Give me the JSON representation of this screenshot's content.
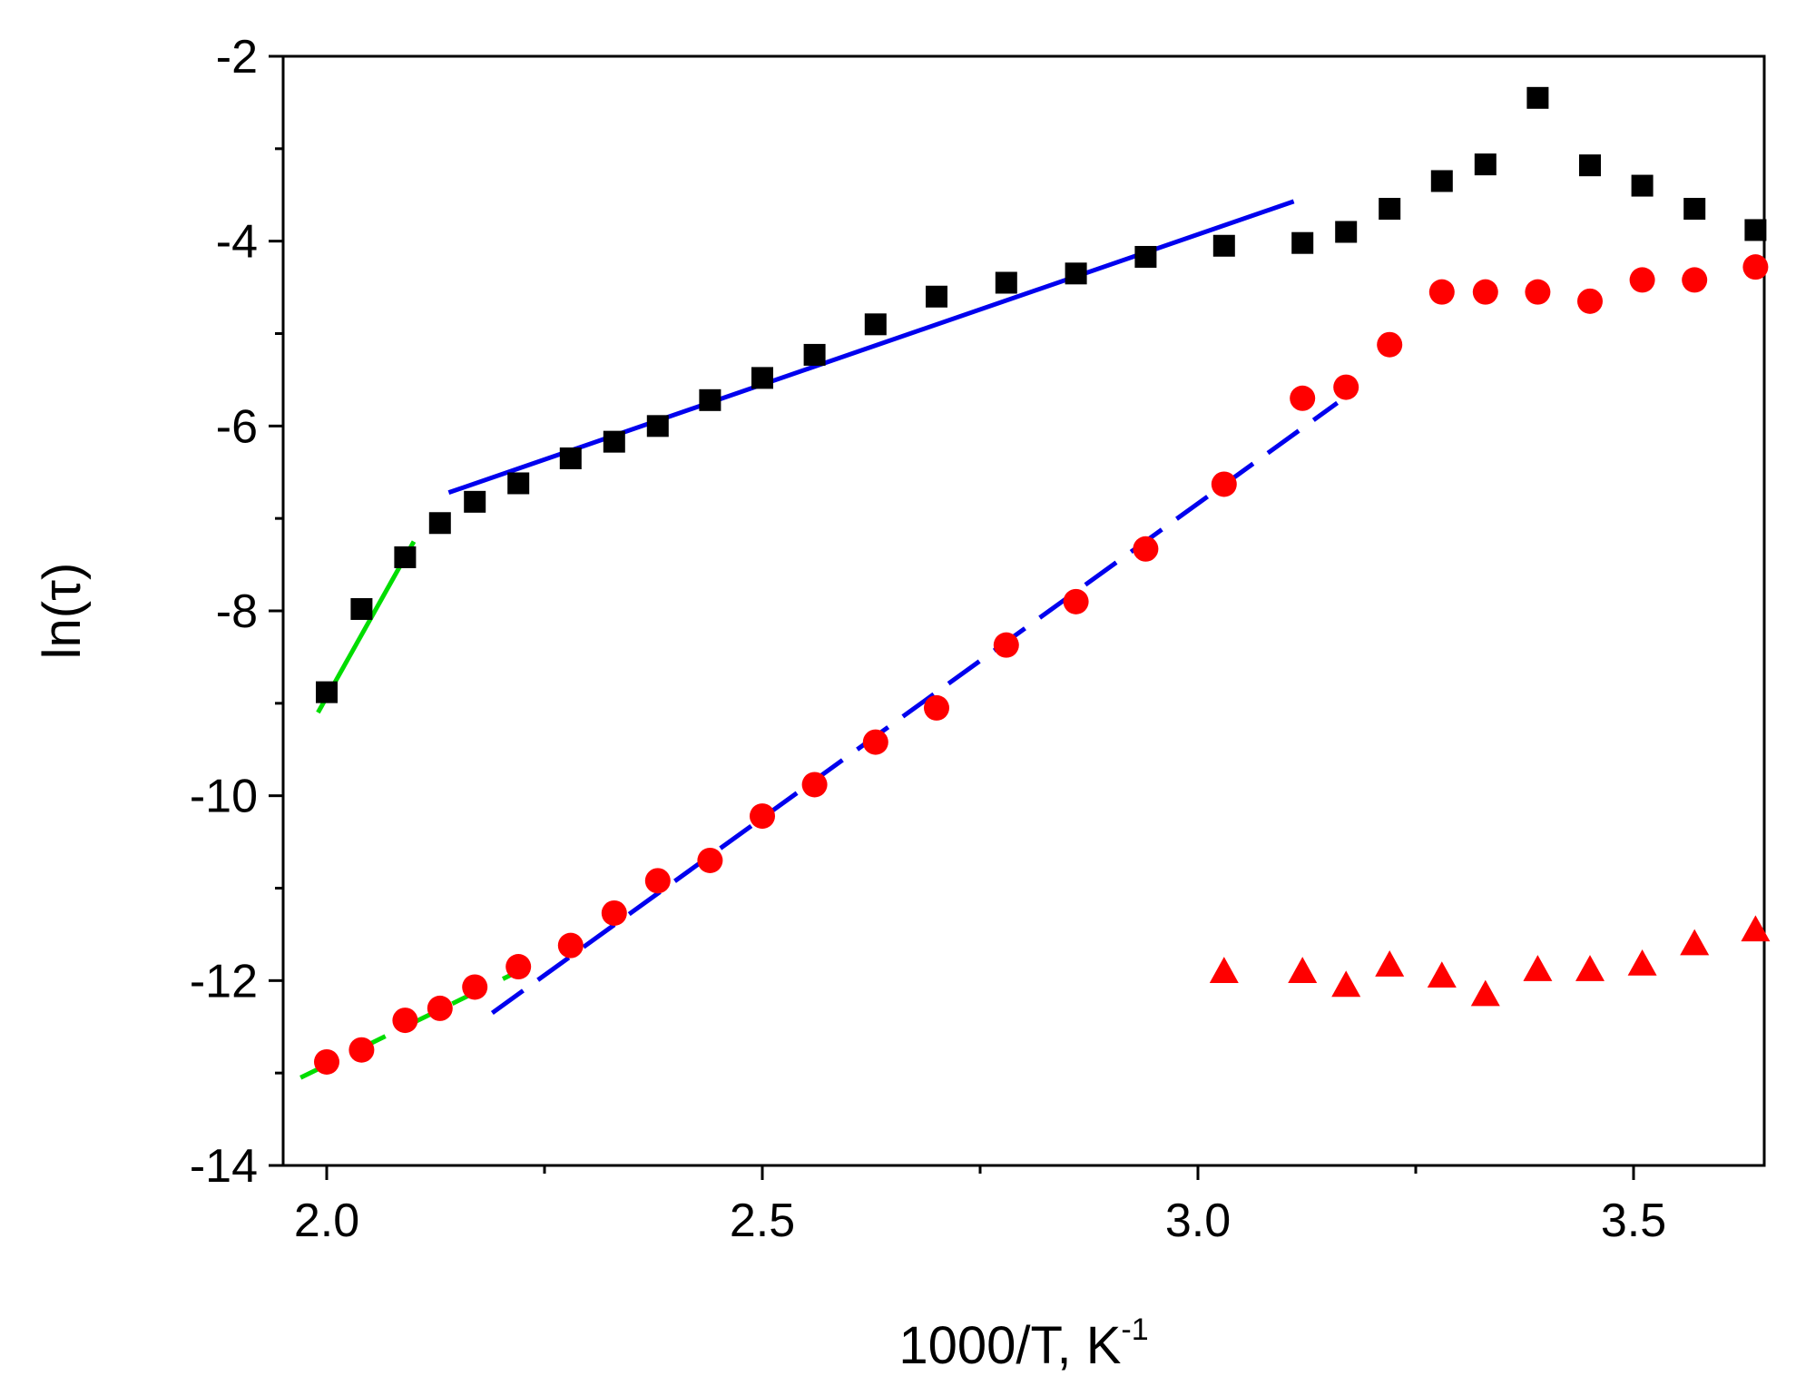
{
  "chart_data": {
    "type": "scatter",
    "title": "",
    "xlabel": {
      "main": "1000/T, K",
      "sup": "-1"
    },
    "ylabel": "ln(τ)",
    "xlim": [
      1.95,
      3.65
    ],
    "ylim": [
      -14,
      -2
    ],
    "x_ticks": [
      {
        "value": 2.0,
        "label": "2.0"
      },
      {
        "value": 2.5,
        "label": "2.5"
      },
      {
        "value": 3.0,
        "label": "3.0"
      },
      {
        "value": 3.5,
        "label": "3.5"
      }
    ],
    "x_minor_ticks": [
      2.25,
      2.75,
      3.25
    ],
    "y_ticks": [
      {
        "value": -2,
        "label": "-2"
      },
      {
        "value": -4,
        "label": "-4"
      },
      {
        "value": -6,
        "label": "-6"
      },
      {
        "value": -8,
        "label": "-8"
      },
      {
        "value": -10,
        "label": "-10"
      },
      {
        "value": -12,
        "label": "-12"
      },
      {
        "value": -14,
        "label": "-14"
      }
    ],
    "y_minor_ticks": [
      -3,
      -5,
      -7,
      -9,
      -11,
      -13
    ],
    "grid": false,
    "series": [
      {
        "name": "black squares",
        "marker": "square",
        "color": "#000000",
        "points": [
          [
            2.0,
            -8.88
          ],
          [
            2.04,
            -7.98
          ],
          [
            2.09,
            -7.42
          ],
          [
            2.13,
            -7.05
          ],
          [
            2.17,
            -6.82
          ],
          [
            2.22,
            -6.62
          ],
          [
            2.28,
            -6.35
          ],
          [
            2.33,
            -6.17
          ],
          [
            2.38,
            -6.0
          ],
          [
            2.44,
            -5.72
          ],
          [
            2.5,
            -5.48
          ],
          [
            2.56,
            -5.23
          ],
          [
            2.63,
            -4.9
          ],
          [
            2.7,
            -4.6
          ],
          [
            2.78,
            -4.45
          ],
          [
            2.86,
            -4.35
          ],
          [
            2.94,
            -4.17
          ],
          [
            3.03,
            -4.05
          ],
          [
            3.12,
            -4.02
          ],
          [
            3.17,
            -3.9
          ],
          [
            3.22,
            -3.65
          ],
          [
            3.28,
            -3.35
          ],
          [
            3.33,
            -3.17
          ],
          [
            3.39,
            -2.45
          ],
          [
            3.45,
            -3.18
          ],
          [
            3.51,
            -3.4
          ],
          [
            3.57,
            -3.65
          ],
          [
            3.64,
            -3.88
          ]
        ]
      },
      {
        "name": "red circles",
        "marker": "circle",
        "color": "#ff0000",
        "points": [
          [
            2.0,
            -12.88
          ],
          [
            2.04,
            -12.75
          ],
          [
            2.09,
            -12.43
          ],
          [
            2.13,
            -12.3
          ],
          [
            2.17,
            -12.07
          ],
          [
            2.22,
            -11.85
          ],
          [
            2.28,
            -11.62
          ],
          [
            2.33,
            -11.27
          ],
          [
            2.38,
            -10.92
          ],
          [
            2.44,
            -10.7
          ],
          [
            2.5,
            -10.22
          ],
          [
            2.56,
            -9.88
          ],
          [
            2.63,
            -9.42
          ],
          [
            2.7,
            -9.05
          ],
          [
            2.78,
            -8.37
          ],
          [
            2.86,
            -7.9
          ],
          [
            2.94,
            -7.33
          ],
          [
            3.03,
            -6.63
          ],
          [
            3.12,
            -5.7
          ],
          [
            3.17,
            -5.58
          ],
          [
            3.22,
            -5.12
          ],
          [
            3.28,
            -4.55
          ],
          [
            3.33,
            -4.55
          ],
          [
            3.39,
            -4.55
          ],
          [
            3.45,
            -4.65
          ],
          [
            3.51,
            -4.42
          ],
          [
            3.57,
            -4.42
          ],
          [
            3.64,
            -4.28
          ]
        ]
      },
      {
        "name": "red triangles",
        "marker": "triangle",
        "color": "#ff0000",
        "points": [
          [
            3.03,
            -11.9
          ],
          [
            3.12,
            -11.9
          ],
          [
            3.17,
            -12.05
          ],
          [
            3.22,
            -11.83
          ],
          [
            3.28,
            -11.95
          ],
          [
            3.33,
            -12.15
          ],
          [
            3.39,
            -11.88
          ],
          [
            3.45,
            -11.88
          ],
          [
            3.51,
            -11.82
          ],
          [
            3.57,
            -11.6
          ],
          [
            3.64,
            -11.45
          ]
        ]
      }
    ],
    "fits": [
      {
        "name": "green solid fit",
        "color": "#00dd00",
        "style": "solid",
        "points": [
          [
            1.99,
            -9.1
          ],
          [
            2.1,
            -7.25
          ]
        ]
      },
      {
        "name": "blue solid fit",
        "color": "#0000ee",
        "style": "solid",
        "points": [
          [
            2.14,
            -6.72
          ],
          [
            3.11,
            -3.57
          ]
        ]
      },
      {
        "name": "green dashed fit",
        "color": "#00dd00",
        "style": "dashed",
        "points": [
          [
            1.97,
            -13.05
          ],
          [
            2.22,
            -11.9
          ]
        ]
      },
      {
        "name": "blue dashed fit",
        "color": "#0000ee",
        "style": "dashed",
        "points": [
          [
            2.19,
            -12.35
          ],
          [
            3.16,
            -5.75
          ]
        ]
      }
    ]
  }
}
